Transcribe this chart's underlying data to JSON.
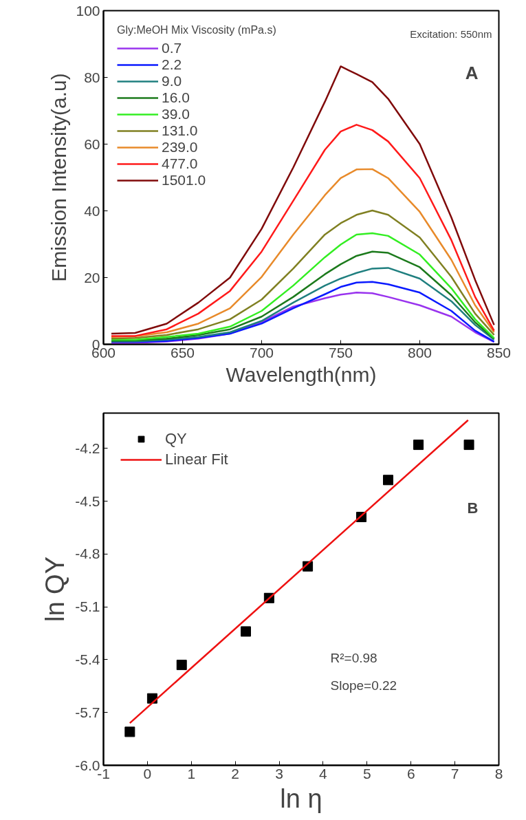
{
  "chart_data": [
    {
      "type": "line",
      "xlabel": "Wavelength(nm)",
      "ylabel": "Emission Intensity(a.u)",
      "legend_title": "Gly:MeOH Mix Viscosity (mPa.s)",
      "legend": "top left",
      "grid": false,
      "line_style": "solid",
      "x": [
        605,
        620,
        640,
        660,
        680,
        700,
        720,
        740,
        750,
        760,
        770,
        780,
        800,
        820,
        835,
        847
      ],
      "xlim": [
        600,
        850
      ],
      "ylim": [
        0,
        100
      ],
      "xticks": [
        600,
        650,
        700,
        750,
        800,
        850
      ],
      "yticks": [
        0,
        20,
        40,
        60,
        80,
        100
      ],
      "annotations": [
        "Excitation: 550nm",
        "A"
      ],
      "series": [
        {
          "name": "0.7",
          "color": "#9933ee",
          "values": [
            0.3,
            0.4,
            0.8,
            1.7,
            3.2,
            6.6,
            11.3,
            13.8,
            14.9,
            15.5,
            15.3,
            14.2,
            11.7,
            8.3,
            3.6,
            0.7
          ]
        },
        {
          "name": "2.2",
          "color": "#0a1aff",
          "values": [
            0.7,
            0.7,
            1.0,
            1.9,
            3.2,
            6.2,
            10.8,
            15.0,
            17.2,
            18.5,
            18.7,
            18.0,
            15.5,
            10.0,
            4.1,
            0.8
          ]
        },
        {
          "name": "9.0",
          "color": "#1f7f7f",
          "values": [
            0.8,
            0.9,
            1.4,
            2.2,
            3.6,
            7.0,
            12.5,
            17.6,
            19.7,
            21.4,
            22.7,
            22.9,
            19.7,
            12.9,
            5.8,
            1.4
          ]
        },
        {
          "name": "16.0",
          "color": "#1c7a1c",
          "values": [
            1.1,
            1.2,
            1.7,
            2.8,
            4.5,
            8.3,
            14.2,
            21.0,
            24.0,
            26.5,
            27.8,
            27.4,
            23.1,
            14.7,
            6.6,
            1.7
          ]
        },
        {
          "name": "39.0",
          "color": "#33ee22",
          "values": [
            1.4,
            1.4,
            2.2,
            3.2,
            5.3,
            10.0,
            17.6,
            26.1,
            29.9,
            32.9,
            33.3,
            32.5,
            26.9,
            16.8,
            7.5,
            1.9
          ]
        },
        {
          "name": "131.0",
          "color": "#808022",
          "values": [
            1.7,
            1.9,
            2.8,
            4.5,
            7.5,
            13.4,
            22.7,
            32.9,
            36.3,
            38.8,
            40.1,
            38.8,
            32.0,
            20.2,
            9.2,
            2.8
          ]
        },
        {
          "name": "239.0",
          "color": "#e88a2a",
          "values": [
            2.2,
            2.4,
            3.6,
            6.2,
            10.8,
            20.2,
            32.9,
            44.7,
            49.8,
            52.4,
            52.5,
            49.8,
            39.7,
            25.3,
            11.7,
            3.6
          ]
        },
        {
          "name": "477.0",
          "color": "#ff1a1a",
          "values": [
            2.5,
            2.5,
            4.5,
            9.2,
            16.0,
            27.8,
            43.0,
            58.3,
            63.8,
            65.8,
            64.2,
            60.8,
            49.8,
            31.2,
            14.2,
            4.1
          ]
        },
        {
          "name": "1501.0",
          "color": "#800a0a",
          "values": [
            3.2,
            3.4,
            6.2,
            12.5,
            20.0,
            34.6,
            53.0,
            72.7,
            83.3,
            81.0,
            78.6,
            73.6,
            60.0,
            38.0,
            19.3,
            5.8
          ]
        }
      ]
    },
    {
      "type": "scatter",
      "xlabel": "ln η",
      "ylabel": "ln QY",
      "legend": "top left",
      "grid": false,
      "xlim": [
        -1,
        8
      ],
      "ylim": [
        -6.0,
        -4.0
      ],
      "xticks": [
        -1,
        0,
        1,
        2,
        3,
        4,
        5,
        6,
        7,
        8
      ],
      "yticks": [
        {
          "value": -6.0,
          "label": "-6.0"
        },
        {
          "value": -5.7,
          "label": "-5.7"
        },
        {
          "value": -5.4,
          "label": "-5.4"
        },
        {
          "value": -5.1,
          "label": "-5.1"
        },
        {
          "value": -4.8,
          "label": "-4.8"
        },
        {
          "value": -4.5,
          "label": "-4.5"
        },
        {
          "value": -4.2,
          "label": "-4.2"
        }
      ],
      "annotations": [
        "B",
        "R²=0.98",
        "Slope=0.22"
      ],
      "series": [
        {
          "name": "QY",
          "type": "scatter",
          "marker": "square",
          "color": "#000000",
          "x": [
            -0.4,
            0.11,
            0.78,
            2.24,
            2.77,
            3.65,
            4.87,
            5.48,
            6.17,
            7.32
          ],
          "values": [
            -5.81,
            -5.62,
            -5.43,
            -5.24,
            -5.05,
            -4.87,
            -4.59,
            -4.38,
            -4.18,
            -4.18
          ]
        },
        {
          "name": "Linear Fit",
          "type": "line",
          "line_style": "solid",
          "color": "#ee1111",
          "x": [
            -0.4,
            7.3
          ],
          "values": [
            -5.76,
            -4.04
          ]
        }
      ]
    }
  ]
}
